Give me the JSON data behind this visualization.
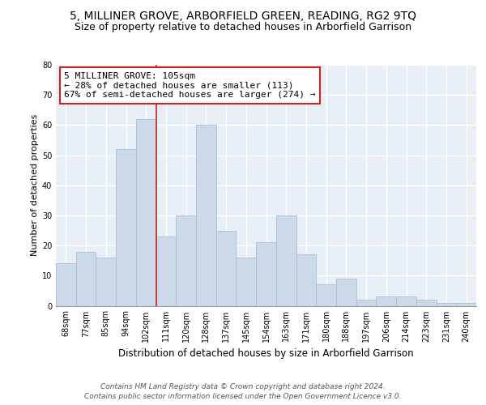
{
  "title": "5, MILLINER GROVE, ARBORFIELD GREEN, READING, RG2 9TQ",
  "subtitle": "Size of property relative to detached houses in Arborfield Garrison",
  "xlabel": "Distribution of detached houses by size in Arborfield Garrison",
  "ylabel": "Number of detached properties",
  "bin_labels": [
    "68sqm",
    "77sqm",
    "85sqm",
    "94sqm",
    "102sqm",
    "111sqm",
    "120sqm",
    "128sqm",
    "137sqm",
    "145sqm",
    "154sqm",
    "163sqm",
    "171sqm",
    "180sqm",
    "188sqm",
    "197sqm",
    "206sqm",
    "214sqm",
    "223sqm",
    "231sqm",
    "240sqm"
  ],
  "bar_heights": [
    14,
    18,
    16,
    52,
    62,
    23,
    30,
    60,
    25,
    16,
    21,
    30,
    17,
    7,
    9,
    2,
    3,
    3,
    2,
    1,
    1
  ],
  "bar_color": "#ccd9e8",
  "bar_edge_color": "#a8bfd4",
  "vline_x_idx": 5,
  "vline_color": "#cc2222",
  "annotation_text": "5 MILLINER GROVE: 105sqm\n← 28% of detached houses are smaller (113)\n67% of semi-detached houses are larger (274) →",
  "annotation_box_color": "white",
  "annotation_box_edge": "#cc2222",
  "ylim": [
    0,
    80
  ],
  "yticks": [
    0,
    10,
    20,
    30,
    40,
    50,
    60,
    70,
    80
  ],
  "footer_text": "Contains HM Land Registry data © Crown copyright and database right 2024.\nContains public sector information licensed under the Open Government Licence v3.0.",
  "background_color": "#e8eef5",
  "grid_color": "white",
  "title_fontsize": 10,
  "subtitle_fontsize": 9,
  "xlabel_fontsize": 8.5,
  "ylabel_fontsize": 8,
  "tick_fontsize": 7,
  "annotation_fontsize": 8,
  "footer_fontsize": 6.5
}
